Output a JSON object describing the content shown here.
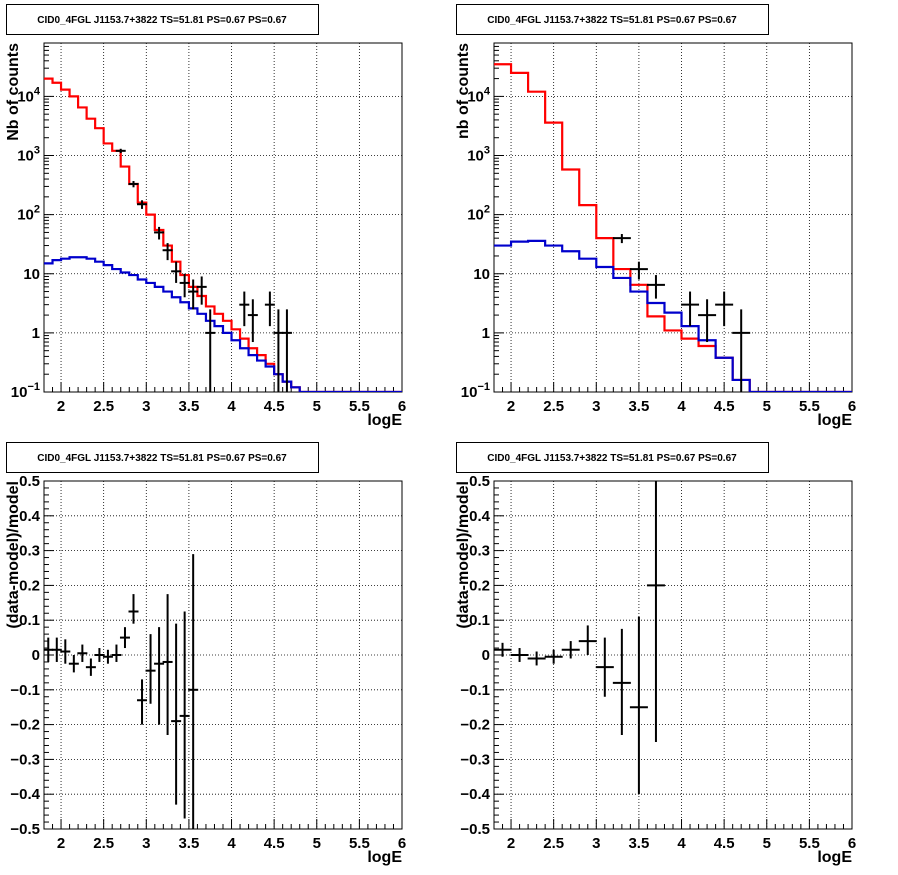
{
  "chart_data": [
    {
      "type": "line",
      "title": "CID0_4FGL J1153.7+3822 TS=51.81 PS=0.67 PS=0.67",
      "xlabel": "logE",
      "ylabel": "Nb of counts",
      "xlim": [
        1.8,
        6.0
      ],
      "ylim": [
        0.1,
        80000
      ],
      "yscale": "log",
      "grid": true,
      "x_ticks": [
        "2",
        "2.5",
        "3",
        "3.5",
        "4",
        "4.5",
        "5",
        "5.5",
        "6"
      ],
      "y_ticks": [
        "10^-1",
        "1",
        "10",
        "10^2",
        "10^3",
        "10^4"
      ],
      "series": [
        {
          "color": "#ff0000",
          "style": "step",
          "bin_edges": [
            1.8,
            1.9,
            2.0,
            2.1,
            2.2,
            2.3,
            2.4,
            2.5,
            2.6,
            2.7,
            2.8,
            2.9,
            3.0,
            3.1,
            3.2,
            3.3,
            3.4,
            3.5,
            3.6,
            3.7,
            3.8,
            3.9,
            4.0,
            4.1,
            4.2,
            4.3,
            4.4,
            4.5,
            4.6,
            4.7,
            4.8,
            4.9,
            5.0,
            5.1,
            5.2,
            5.3,
            5.4,
            5.5,
            5.6,
            5.7,
            5.8,
            5.9,
            6.0
          ],
          "values": [
            20000,
            17000,
            13000,
            10000,
            6500,
            4200,
            2900,
            1600,
            1200,
            650,
            330,
            160,
            100,
            55,
            30,
            16,
            9.5,
            6,
            4.2,
            2.8,
            2.1,
            1.6,
            1.15,
            0.8,
            0.55,
            0.42,
            0.3,
            0.2,
            0.15,
            0.12,
            0.1,
            0.1,
            0.1,
            0.1,
            0.1,
            0.1,
            0.1,
            0.1,
            0.1,
            0.1,
            0.1,
            0.1
          ]
        },
        {
          "color": "#0000cc",
          "style": "step",
          "bin_edges": [
            1.8,
            1.9,
            2.0,
            2.1,
            2.2,
            2.3,
            2.4,
            2.5,
            2.6,
            2.7,
            2.8,
            2.9,
            3.0,
            3.1,
            3.2,
            3.3,
            3.4,
            3.5,
            3.6,
            3.7,
            3.8,
            3.9,
            4.0,
            4.1,
            4.2,
            4.3,
            4.4,
            4.5,
            4.6,
            4.7,
            4.8,
            4.9,
            5.0,
            5.1,
            5.2,
            5.3,
            5.4,
            5.5,
            5.6,
            5.7,
            5.8,
            5.9,
            6.0
          ],
          "values": [
            15,
            17,
            18,
            19,
            19,
            18,
            16,
            14,
            12,
            10.5,
            9.5,
            8,
            7,
            6,
            5,
            4,
            3.3,
            2.6,
            2.1,
            1.6,
            1.3,
            1.0,
            0.75,
            0.55,
            0.42,
            0.34,
            0.27,
            0.2,
            0.15,
            0.12,
            0.1,
            0.1,
            0.1,
            0.1,
            0.1,
            0.1,
            0.1,
            0.1,
            0.1,
            0.1,
            0.1,
            0.1
          ]
        },
        {
          "color": "#000000",
          "style": "errorbar",
          "points": [
            {
              "x": 2.7,
              "y": 1200,
              "lo": 1100,
              "hi": 1300
            },
            {
              "x": 2.85,
              "y": 330,
              "lo": 290,
              "hi": 370
            },
            {
              "x": 2.95,
              "y": 150,
              "lo": 125,
              "hi": 175
            },
            {
              "x": 3.15,
              "y": 50,
              "lo": 38,
              "hi": 62
            },
            {
              "x": 3.25,
              "y": 25,
              "lo": 17,
              "hi": 33
            },
            {
              "x": 3.35,
              "y": 11,
              "lo": 7,
              "hi": 16
            },
            {
              "x": 3.45,
              "y": 7,
              "lo": 4,
              "hi": 10
            },
            {
              "x": 3.55,
              "y": 5,
              "lo": 2.5,
              "hi": 8
            },
            {
              "x": 3.65,
              "y": 6,
              "lo": 3,
              "hi": 9
            },
            {
              "x": 3.75,
              "y": 1,
              "lo": 0.1,
              "hi": 2.5
            },
            {
              "x": 4.15,
              "y": 3,
              "lo": 1.3,
              "hi": 5
            },
            {
              "x": 4.25,
              "y": 2,
              "lo": 0.7,
              "hi": 3.7
            },
            {
              "x": 4.45,
              "y": 3,
              "lo": 1.3,
              "hi": 5
            },
            {
              "x": 4.55,
              "y": 1,
              "lo": 0.1,
              "hi": 2.5
            },
            {
              "x": 4.65,
              "y": 1,
              "lo": 0.1,
              "hi": 2.5
            }
          ]
        }
      ]
    },
    {
      "type": "line",
      "title": "CID0_4FGL J1153.7+3822 TS=51.81 PS=0.67 PS=0.67",
      "xlabel": "logE",
      "ylabel": "nb of counts",
      "xlim": [
        1.8,
        6.0
      ],
      "ylim": [
        0.1,
        80000
      ],
      "yscale": "log",
      "grid": true,
      "x_ticks": [
        "2",
        "2.5",
        "3",
        "3.5",
        "4",
        "4.5",
        "5",
        "5.5",
        "6"
      ],
      "y_ticks": [
        "10^-1",
        "1",
        "10",
        "10^2",
        "10^3",
        "10^4"
      ],
      "series": [
        {
          "color": "#ff0000",
          "style": "step",
          "bin_edges": [
            1.8,
            2.0,
            2.2,
            2.4,
            2.6,
            2.8,
            3.0,
            3.2,
            3.4,
            3.6,
            3.8,
            4.0,
            4.2,
            4.4,
            4.6,
            4.8,
            5.0,
            5.2,
            5.4,
            5.6,
            5.8,
            6.0
          ],
          "values": [
            35000,
            25000,
            12000,
            3600,
            580,
            145,
            40,
            12,
            6.5,
            1.9,
            1.1,
            0.8,
            0.6,
            0.38,
            0.16,
            0.1,
            0.1,
            0.1,
            0.1,
            0.1,
            0.1
          ]
        },
        {
          "color": "#0000cc",
          "style": "step",
          "bin_edges": [
            1.8,
            2.0,
            2.2,
            2.4,
            2.6,
            2.8,
            3.0,
            3.2,
            3.4,
            3.6,
            3.8,
            4.0,
            4.2,
            4.4,
            4.6,
            4.8,
            5.0,
            5.2,
            5.4,
            5.6,
            5.8,
            6.0
          ],
          "values": [
            30,
            35,
            36,
            30,
            24,
            18,
            13,
            8.5,
            5,
            3.2,
            2.2,
            1.3,
            0.75,
            0.38,
            0.16,
            0.1,
            0.1,
            0.1,
            0.1,
            0.1,
            0.1
          ]
        },
        {
          "color": "#000000",
          "style": "errorbar",
          "points": [
            {
              "x": 3.3,
              "y": 40,
              "lo": 33,
              "hi": 47
            },
            {
              "x": 3.5,
              "y": 12,
              "lo": 8,
              "hi": 16
            },
            {
              "x": 3.7,
              "y": 6.5,
              "lo": 3.8,
              "hi": 9.5
            },
            {
              "x": 4.1,
              "y": 3,
              "lo": 1.3,
              "hi": 5
            },
            {
              "x": 4.3,
              "y": 2,
              "lo": 0.7,
              "hi": 3.7
            },
            {
              "x": 4.5,
              "y": 3,
              "lo": 1.3,
              "hi": 5
            },
            {
              "x": 4.7,
              "y": 1,
              "lo": 0.1,
              "hi": 2.5
            }
          ]
        }
      ]
    },
    {
      "type": "scatter",
      "title": "CID0_4FGL J1153.7+3822 TS=51.81 PS=0.67 PS=0.67",
      "xlabel": "logE",
      "ylabel": "(data-model)/model",
      "xlim": [
        1.8,
        6.0
      ],
      "ylim": [
        -0.5,
        0.5
      ],
      "grid": true,
      "x_ticks": [
        "2",
        "2.5",
        "3",
        "3.5",
        "4",
        "4.5",
        "5",
        "5.5",
        "6"
      ],
      "y_ticks": [
        "−0.5",
        "−0.4",
        "−0.3",
        "−0.2",
        "−0.1",
        "0",
        "0.1",
        "0.2",
        "0.3",
        "0.4",
        "0.5"
      ],
      "points": [
        {
          "x": 1.85,
          "y": 0.015,
          "lo": -0.02,
          "hi": 0.05
        },
        {
          "x": 1.95,
          "y": 0.015,
          "lo": -0.02,
          "hi": 0.05
        },
        {
          "x": 2.05,
          "y": 0.01,
          "lo": -0.025,
          "hi": 0.045
        },
        {
          "x": 2.15,
          "y": -0.025,
          "lo": -0.05,
          "hi": 0.0
        },
        {
          "x": 2.25,
          "y": 0.005,
          "lo": -0.02,
          "hi": 0.03
        },
        {
          "x": 2.35,
          "y": -0.035,
          "lo": -0.06,
          "hi": -0.01
        },
        {
          "x": 2.45,
          "y": 0.0,
          "lo": -0.02,
          "hi": 0.02
        },
        {
          "x": 2.55,
          "y": -0.005,
          "lo": -0.025,
          "hi": 0.015
        },
        {
          "x": 2.65,
          "y": 0.0,
          "lo": -0.02,
          "hi": 0.03
        },
        {
          "x": 2.75,
          "y": 0.05,
          "lo": 0.02,
          "hi": 0.08
        },
        {
          "x": 2.85,
          "y": 0.125,
          "lo": 0.09,
          "hi": 0.175
        },
        {
          "x": 2.95,
          "y": -0.13,
          "lo": -0.2,
          "hi": -0.07
        },
        {
          "x": 3.05,
          "y": -0.045,
          "lo": -0.14,
          "hi": 0.06
        },
        {
          "x": 3.15,
          "y": -0.025,
          "lo": -0.2,
          "hi": 0.08
        },
        {
          "x": 3.25,
          "y": -0.02,
          "lo": -0.23,
          "hi": 0.175
        },
        {
          "x": 3.35,
          "y": -0.19,
          "lo": -0.43,
          "hi": 0.09
        },
        {
          "x": 3.45,
          "y": -0.175,
          "lo": -0.47,
          "hi": 0.125
        },
        {
          "x": 3.55,
          "y": -0.1,
          "lo": -0.5,
          "hi": 0.29
        }
      ]
    },
    {
      "type": "scatter",
      "title": "CID0_4FGL J1153.7+3822 TS=51.81 PS=0.67 PS=0.67",
      "xlabel": "logE",
      "ylabel": "(data-model)/model",
      "xlim": [
        1.8,
        6.0
      ],
      "ylim": [
        -0.5,
        0.5
      ],
      "grid": true,
      "x_ticks": [
        "2",
        "2.5",
        "3",
        "3.5",
        "4",
        "4.5",
        "5",
        "5.5",
        "6"
      ],
      "y_ticks": [
        "−0.5",
        "−0.4",
        "−0.3",
        "−0.2",
        "−0.1",
        "0",
        "0.1",
        "0.2",
        "0.3",
        "0.4",
        "0.5"
      ],
      "points": [
        {
          "x": 1.9,
          "y": 0.015,
          "lo": -0.005,
          "hi": 0.035
        },
        {
          "x": 2.1,
          "y": 0.0,
          "lo": -0.02,
          "hi": 0.02
        },
        {
          "x": 2.3,
          "y": -0.01,
          "lo": -0.03,
          "hi": 0.01
        },
        {
          "x": 2.5,
          "y": -0.005,
          "lo": -0.025,
          "hi": 0.015
        },
        {
          "x": 2.7,
          "y": 0.015,
          "lo": -0.01,
          "hi": 0.04
        },
        {
          "x": 2.9,
          "y": 0.04,
          "lo": 0.0,
          "hi": 0.085
        },
        {
          "x": 3.1,
          "y": -0.035,
          "lo": -0.12,
          "hi": 0.05
        },
        {
          "x": 3.3,
          "y": -0.08,
          "lo": -0.23,
          "hi": 0.075
        },
        {
          "x": 3.5,
          "y": -0.15,
          "lo": -0.4,
          "hi": 0.11
        },
        {
          "x": 3.7,
          "y": 0.2,
          "lo": -0.25,
          "hi": 0.5
        }
      ]
    }
  ]
}
